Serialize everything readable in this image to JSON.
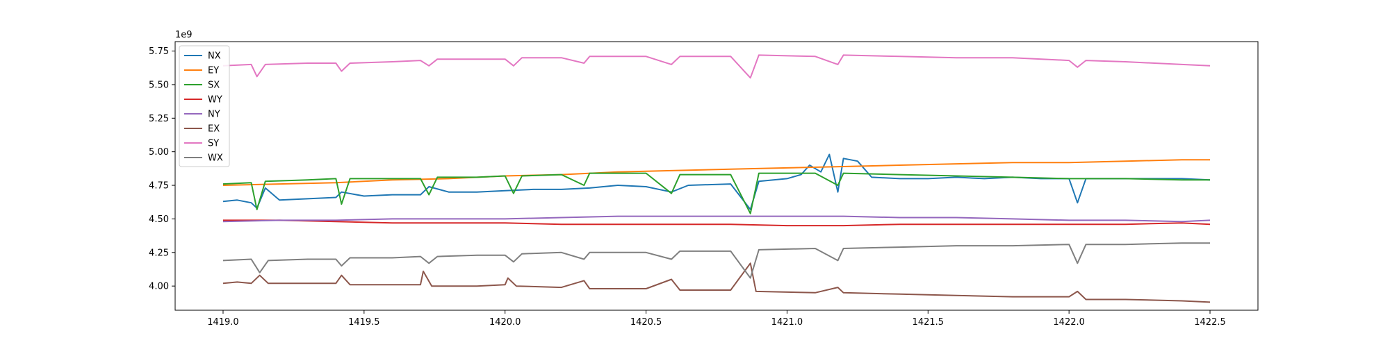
{
  "chart_data": {
    "type": "line",
    "title": "",
    "xlabel": "",
    "ylabel": "",
    "y_offset_label": "1e9",
    "xlim": [
      1418.83,
      1422.67
    ],
    "ylim": [
      3.82,
      5.82
    ],
    "x_ticks": [
      {
        "value": 1419.0,
        "label": "1419.0"
      },
      {
        "value": 1419.5,
        "label": "1419.5"
      },
      {
        "value": 1420.0,
        "label": "1420.0"
      },
      {
        "value": 1420.5,
        "label": "1420.5"
      },
      {
        "value": 1421.0,
        "label": "1421.0"
      },
      {
        "value": 1421.5,
        "label": "1421.5"
      },
      {
        "value": 1422.0,
        "label": "1422.0"
      },
      {
        "value": 1422.5,
        "label": "1422.5"
      }
    ],
    "y_ticks": [
      {
        "value": 4.0,
        "label": "4.00"
      },
      {
        "value": 4.25,
        "label": "4.25"
      },
      {
        "value": 4.5,
        "label": "4.50"
      },
      {
        "value": 4.75,
        "label": "4.75"
      },
      {
        "value": 5.0,
        "label": "5.00"
      },
      {
        "value": 5.25,
        "label": "5.25"
      },
      {
        "value": 5.5,
        "label": "5.50"
      },
      {
        "value": 5.75,
        "label": "5.75"
      }
    ],
    "grid": false,
    "legend_position": "top-left",
    "series": [
      {
        "name": "NX",
        "color": "#1f77b4",
        "points": [
          [
            1419.0,
            4.63
          ],
          [
            1419.05,
            4.64
          ],
          [
            1419.1,
            4.62
          ],
          [
            1419.12,
            4.58
          ],
          [
            1419.15,
            4.73
          ],
          [
            1419.2,
            4.64
          ],
          [
            1419.3,
            4.65
          ],
          [
            1419.4,
            4.66
          ],
          [
            1419.42,
            4.7
          ],
          [
            1419.5,
            4.67
          ],
          [
            1419.6,
            4.68
          ],
          [
            1419.7,
            4.68
          ],
          [
            1419.73,
            4.74
          ],
          [
            1419.8,
            4.7
          ],
          [
            1419.9,
            4.7
          ],
          [
            1420.0,
            4.71
          ],
          [
            1420.1,
            4.72
          ],
          [
            1420.2,
            4.72
          ],
          [
            1420.3,
            4.73
          ],
          [
            1420.4,
            4.75
          ],
          [
            1420.5,
            4.74
          ],
          [
            1420.59,
            4.7
          ],
          [
            1420.65,
            4.75
          ],
          [
            1420.8,
            4.76
          ],
          [
            1420.87,
            4.57
          ],
          [
            1420.9,
            4.78
          ],
          [
            1421.0,
            4.8
          ],
          [
            1421.05,
            4.83
          ],
          [
            1421.08,
            4.9
          ],
          [
            1421.12,
            4.85
          ],
          [
            1421.15,
            4.98
          ],
          [
            1421.18,
            4.7
          ],
          [
            1421.2,
            4.95
          ],
          [
            1421.25,
            4.93
          ],
          [
            1421.3,
            4.81
          ],
          [
            1421.4,
            4.8
          ],
          [
            1421.5,
            4.8
          ],
          [
            1421.6,
            4.81
          ],
          [
            1421.7,
            4.8
          ],
          [
            1421.8,
            4.81
          ],
          [
            1421.9,
            4.8
          ],
          [
            1422.0,
            4.8
          ],
          [
            1422.03,
            4.62
          ],
          [
            1422.06,
            4.8
          ],
          [
            1422.2,
            4.8
          ],
          [
            1422.3,
            4.8
          ],
          [
            1422.4,
            4.8
          ],
          [
            1422.5,
            4.79
          ]
        ]
      },
      {
        "name": "EY",
        "color": "#ff7f0e",
        "points": [
          [
            1419.0,
            4.75
          ],
          [
            1419.2,
            4.76
          ],
          [
            1419.4,
            4.77
          ],
          [
            1419.6,
            4.79
          ],
          [
            1419.8,
            4.8
          ],
          [
            1420.0,
            4.82
          ],
          [
            1420.2,
            4.83
          ],
          [
            1420.4,
            4.85
          ],
          [
            1420.6,
            4.86
          ],
          [
            1420.8,
            4.87
          ],
          [
            1421.0,
            4.88
          ],
          [
            1421.2,
            4.89
          ],
          [
            1421.4,
            4.9
          ],
          [
            1421.6,
            4.91
          ],
          [
            1421.8,
            4.92
          ],
          [
            1422.0,
            4.92
          ],
          [
            1422.2,
            4.93
          ],
          [
            1422.4,
            4.94
          ],
          [
            1422.5,
            4.94
          ]
        ]
      },
      {
        "name": "SX",
        "color": "#2ca02c",
        "points": [
          [
            1419.0,
            4.76
          ],
          [
            1419.1,
            4.77
          ],
          [
            1419.12,
            4.57
          ],
          [
            1419.15,
            4.78
          ],
          [
            1419.3,
            4.79
          ],
          [
            1419.4,
            4.8
          ],
          [
            1419.42,
            4.61
          ],
          [
            1419.45,
            4.8
          ],
          [
            1419.6,
            4.8
          ],
          [
            1419.7,
            4.8
          ],
          [
            1419.73,
            4.68
          ],
          [
            1419.76,
            4.81
          ],
          [
            1419.9,
            4.81
          ],
          [
            1420.0,
            4.82
          ],
          [
            1420.03,
            4.69
          ],
          [
            1420.06,
            4.82
          ],
          [
            1420.2,
            4.83
          ],
          [
            1420.28,
            4.75
          ],
          [
            1420.3,
            4.84
          ],
          [
            1420.5,
            4.84
          ],
          [
            1420.59,
            4.69
          ],
          [
            1420.62,
            4.83
          ],
          [
            1420.8,
            4.83
          ],
          [
            1420.87,
            4.54
          ],
          [
            1420.9,
            4.84
          ],
          [
            1421.1,
            4.84
          ],
          [
            1421.18,
            4.75
          ],
          [
            1421.2,
            4.84
          ],
          [
            1421.4,
            4.83
          ],
          [
            1421.6,
            4.82
          ],
          [
            1421.8,
            4.81
          ],
          [
            1422.0,
            4.8
          ],
          [
            1422.2,
            4.8
          ],
          [
            1422.4,
            4.79
          ],
          [
            1422.5,
            4.79
          ]
        ]
      },
      {
        "name": "WY",
        "color": "#d62728",
        "points": [
          [
            1419.0,
            4.49
          ],
          [
            1419.2,
            4.49
          ],
          [
            1419.4,
            4.48
          ],
          [
            1419.6,
            4.47
          ],
          [
            1419.8,
            4.47
          ],
          [
            1420.0,
            4.47
          ],
          [
            1420.2,
            4.46
          ],
          [
            1420.4,
            4.46
          ],
          [
            1420.6,
            4.46
          ],
          [
            1420.8,
            4.46
          ],
          [
            1421.0,
            4.45
          ],
          [
            1421.2,
            4.45
          ],
          [
            1421.4,
            4.46
          ],
          [
            1421.6,
            4.46
          ],
          [
            1421.8,
            4.46
          ],
          [
            1422.0,
            4.46
          ],
          [
            1422.2,
            4.46
          ],
          [
            1422.4,
            4.47
          ],
          [
            1422.5,
            4.46
          ]
        ]
      },
      {
        "name": "NY",
        "color": "#9467bd",
        "points": [
          [
            1419.0,
            4.48
          ],
          [
            1419.2,
            4.49
          ],
          [
            1419.4,
            4.49
          ],
          [
            1419.6,
            4.5
          ],
          [
            1419.8,
            4.5
          ],
          [
            1420.0,
            4.5
          ],
          [
            1420.2,
            4.51
          ],
          [
            1420.4,
            4.52
          ],
          [
            1420.6,
            4.52
          ],
          [
            1420.8,
            4.52
          ],
          [
            1421.0,
            4.52
          ],
          [
            1421.2,
            4.52
          ],
          [
            1421.4,
            4.51
          ],
          [
            1421.6,
            4.51
          ],
          [
            1421.8,
            4.5
          ],
          [
            1422.0,
            4.49
          ],
          [
            1422.2,
            4.49
          ],
          [
            1422.4,
            4.48
          ],
          [
            1422.5,
            4.49
          ]
        ]
      },
      {
        "name": "EX",
        "color": "#8c564b",
        "points": [
          [
            1419.0,
            4.02
          ],
          [
            1419.05,
            4.03
          ],
          [
            1419.1,
            4.02
          ],
          [
            1419.13,
            4.08
          ],
          [
            1419.16,
            4.02
          ],
          [
            1419.3,
            4.02
          ],
          [
            1419.4,
            4.02
          ],
          [
            1419.42,
            4.08
          ],
          [
            1419.45,
            4.01
          ],
          [
            1419.6,
            4.01
          ],
          [
            1419.7,
            4.01
          ],
          [
            1419.71,
            4.11
          ],
          [
            1419.74,
            4.0
          ],
          [
            1419.9,
            4.0
          ],
          [
            1420.0,
            4.01
          ],
          [
            1420.01,
            4.06
          ],
          [
            1420.04,
            4.0
          ],
          [
            1420.2,
            3.99
          ],
          [
            1420.28,
            4.04
          ],
          [
            1420.3,
            3.98
          ],
          [
            1420.5,
            3.98
          ],
          [
            1420.59,
            4.05
          ],
          [
            1420.62,
            3.97
          ],
          [
            1420.8,
            3.97
          ],
          [
            1420.87,
            4.17
          ],
          [
            1420.89,
            3.96
          ],
          [
            1421.1,
            3.95
          ],
          [
            1421.18,
            3.99
          ],
          [
            1421.2,
            3.95
          ],
          [
            1421.4,
            3.94
          ],
          [
            1421.6,
            3.93
          ],
          [
            1421.8,
            3.92
          ],
          [
            1422.0,
            3.92
          ],
          [
            1422.03,
            3.96
          ],
          [
            1422.06,
            3.9
          ],
          [
            1422.2,
            3.9
          ],
          [
            1422.4,
            3.89
          ],
          [
            1422.5,
            3.88
          ]
        ]
      },
      {
        "name": "SY",
        "color": "#e377c2",
        "points": [
          [
            1419.0,
            5.64
          ],
          [
            1419.1,
            5.65
          ],
          [
            1419.12,
            5.56
          ],
          [
            1419.15,
            5.65
          ],
          [
            1419.3,
            5.66
          ],
          [
            1419.4,
            5.66
          ],
          [
            1419.42,
            5.6
          ],
          [
            1419.45,
            5.66
          ],
          [
            1419.6,
            5.67
          ],
          [
            1419.7,
            5.68
          ],
          [
            1419.73,
            5.64
          ],
          [
            1419.76,
            5.69
          ],
          [
            1419.9,
            5.69
          ],
          [
            1420.0,
            5.69
          ],
          [
            1420.03,
            5.64
          ],
          [
            1420.06,
            5.7
          ],
          [
            1420.2,
            5.7
          ],
          [
            1420.28,
            5.66
          ],
          [
            1420.3,
            5.71
          ],
          [
            1420.5,
            5.71
          ],
          [
            1420.59,
            5.65
          ],
          [
            1420.62,
            5.71
          ],
          [
            1420.8,
            5.71
          ],
          [
            1420.87,
            5.55
          ],
          [
            1420.9,
            5.72
          ],
          [
            1421.1,
            5.71
          ],
          [
            1421.18,
            5.65
          ],
          [
            1421.2,
            5.72
          ],
          [
            1421.4,
            5.71
          ],
          [
            1421.6,
            5.7
          ],
          [
            1421.8,
            5.7
          ],
          [
            1422.0,
            5.68
          ],
          [
            1422.03,
            5.63
          ],
          [
            1422.06,
            5.68
          ],
          [
            1422.2,
            5.67
          ],
          [
            1422.4,
            5.65
          ],
          [
            1422.5,
            5.64
          ]
        ]
      },
      {
        "name": "WX",
        "color": "#7f7f7f",
        "points": [
          [
            1419.0,
            4.19
          ],
          [
            1419.1,
            4.2
          ],
          [
            1419.13,
            4.1
          ],
          [
            1419.16,
            4.19
          ],
          [
            1419.3,
            4.2
          ],
          [
            1419.4,
            4.2
          ],
          [
            1419.42,
            4.15
          ],
          [
            1419.45,
            4.21
          ],
          [
            1419.6,
            4.21
          ],
          [
            1419.7,
            4.22
          ],
          [
            1419.73,
            4.17
          ],
          [
            1419.76,
            4.22
          ],
          [
            1419.9,
            4.23
          ],
          [
            1420.0,
            4.23
          ],
          [
            1420.03,
            4.18
          ],
          [
            1420.06,
            4.24
          ],
          [
            1420.2,
            4.25
          ],
          [
            1420.28,
            4.2
          ],
          [
            1420.3,
            4.25
          ],
          [
            1420.5,
            4.25
          ],
          [
            1420.59,
            4.2
          ],
          [
            1420.62,
            4.26
          ],
          [
            1420.8,
            4.26
          ],
          [
            1420.87,
            4.06
          ],
          [
            1420.9,
            4.27
          ],
          [
            1421.1,
            4.28
          ],
          [
            1421.18,
            4.19
          ],
          [
            1421.2,
            4.28
          ],
          [
            1421.4,
            4.29
          ],
          [
            1421.6,
            4.3
          ],
          [
            1421.8,
            4.3
          ],
          [
            1422.0,
            4.31
          ],
          [
            1422.03,
            4.17
          ],
          [
            1422.06,
            4.31
          ],
          [
            1422.2,
            4.31
          ],
          [
            1422.4,
            4.32
          ],
          [
            1422.5,
            4.32
          ]
        ]
      }
    ]
  }
}
